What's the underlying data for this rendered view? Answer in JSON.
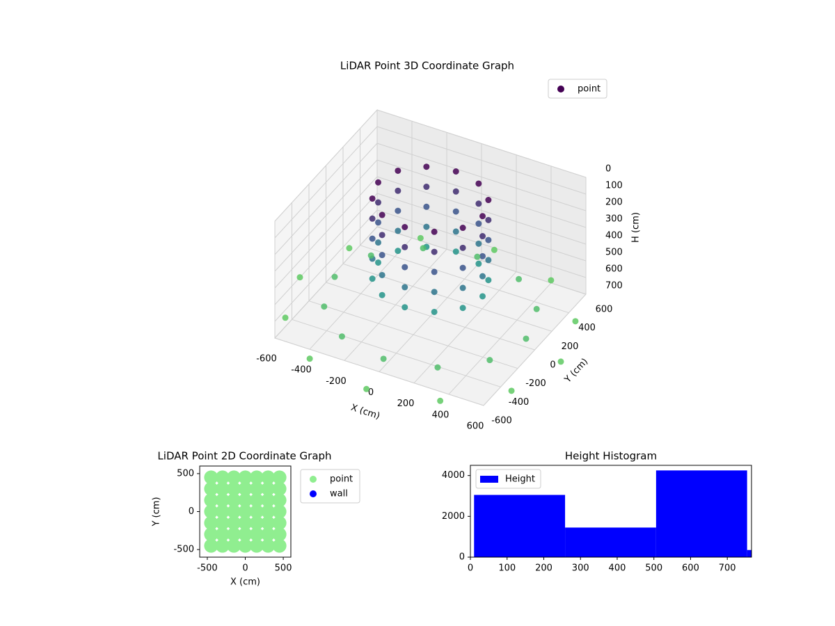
{
  "chart_data": [
    {
      "type": "scatter3d",
      "title": "LiDAR Point 3D Coordinate Graph",
      "xlabel": "X (cm)",
      "ylabel": "Y (cm)",
      "zlabel": "H (cm)",
      "xlim": [
        -600,
        600
      ],
      "ylim": [
        -600,
        600
      ],
      "zlim": [
        0,
        700
      ],
      "z_inverted": true,
      "xticks": [
        -600,
        -400,
        -200,
        0,
        200,
        400,
        600
      ],
      "yticks": [
        -600,
        -400,
        -200,
        0,
        200,
        400,
        600
      ],
      "zticks": [
        0,
        100,
        200,
        300,
        400,
        500,
        600,
        700
      ],
      "colormap": [
        "#440154",
        "#3b528b",
        "#21918c",
        "#5ec962"
      ],
      "series": [
        {
          "name": "point",
          "color": "#440154",
          "x": [
            300,
            260,
            150,
            0,
            -150,
            -260,
            -300,
            -260,
            -150,
            0,
            150,
            260,
            300,
            260,
            150,
            0,
            -150,
            -260,
            -300,
            -260,
            -150,
            0,
            150,
            260,
            300,
            260,
            150,
            0,
            -150,
            -260,
            -300,
            -260,
            -150,
            0,
            150,
            260,
            300,
            260,
            150,
            0,
            -150,
            -260,
            -300,
            -260,
            -150,
            0,
            150,
            260,
            300,
            260,
            150,
            0,
            -150,
            -260,
            -300,
            -260,
            -150,
            0,
            150,
            260,
            550,
            476,
            275,
            0,
            -275,
            -476,
            -550,
            -476,
            -275,
            0,
            275,
            476,
            750,
            650,
            375,
            0,
            -375,
            -650,
            -750,
            -650,
            -375,
            0,
            375,
            650
          ],
          "y": [
            0,
            150,
            260,
            300,
            260,
            150,
            0,
            -150,
            -260,
            -300,
            -260,
            -150,
            0,
            150,
            260,
            300,
            260,
            150,
            0,
            -150,
            -260,
            -300,
            -260,
            -150,
            0,
            150,
            260,
            300,
            260,
            150,
            0,
            -150,
            -260,
            -300,
            -260,
            -150,
            0,
            150,
            260,
            300,
            260,
            150,
            0,
            -150,
            -260,
            -300,
            -260,
            -150,
            0,
            150,
            260,
            300,
            260,
            150,
            0,
            -150,
            -260,
            -300,
            -260,
            -150,
            0,
            275,
            476,
            550,
            476,
            275,
            0,
            -275,
            -476,
            -550,
            -476,
            -275,
            0,
            375,
            650,
            750,
            650,
            375,
            0,
            -375,
            -650,
            -750,
            -650,
            -375
          ],
          "h": [
            0,
            0,
            0,
            0,
            0,
            0,
            0,
            0,
            0,
            0,
            0,
            0,
            120,
            120,
            120,
            120,
            120,
            120,
            120,
            120,
            120,
            120,
            120,
            120,
            240,
            240,
            240,
            240,
            240,
            240,
            240,
            240,
            240,
            240,
            240,
            240,
            360,
            360,
            360,
            360,
            360,
            360,
            360,
            360,
            360,
            360,
            360,
            360,
            480,
            480,
            480,
            480,
            480,
            480,
            480,
            480,
            480,
            480,
            480,
            480,
            650,
            650,
            650,
            650,
            650,
            650,
            650,
            650,
            650,
            650,
            650,
            650,
            720,
            720,
            720,
            720,
            720,
            720,
            720,
            720,
            720,
            720,
            720,
            720
          ]
        }
      ]
    },
    {
      "type": "scatter",
      "title": "LiDAR Point 2D Coordinate Graph",
      "xlabel": "X (cm)",
      "ylabel": "Y (cm)",
      "xlim": [
        -600,
        600
      ],
      "ylim": [
        -600,
        600
      ],
      "xticks": [
        -500,
        0,
        500
      ],
      "yticks": [
        -500,
        0,
        500
      ],
      "series": [
        {
          "name": "point",
          "color": "#90ee90",
          "x": [
            -450,
            -300,
            -150,
            0,
            150,
            300,
            450,
            -450,
            -300,
            -150,
            0,
            150,
            300,
            450,
            -450,
            -300,
            -150,
            0,
            150,
            300,
            450,
            -450,
            -300,
            -150,
            0,
            150,
            300,
            450,
            -450,
            -300,
            -150,
            0,
            150,
            300,
            450,
            -450,
            -300,
            -150,
            0,
            150,
            300,
            450,
            -450,
            -300,
            -150,
            0,
            150,
            300,
            450
          ],
          "y": [
            -450,
            -450,
            -450,
            -450,
            -450,
            -450,
            -450,
            -300,
            -300,
            -300,
            -300,
            -300,
            -300,
            -300,
            -150,
            -150,
            -150,
            -150,
            -150,
            -150,
            -150,
            0,
            0,
            0,
            0,
            0,
            0,
            0,
            150,
            150,
            150,
            150,
            150,
            150,
            150,
            300,
            300,
            300,
            300,
            300,
            300,
            300,
            450,
            450,
            450,
            450,
            450,
            450,
            450
          ]
        },
        {
          "name": "wall",
          "color": "#0000ff",
          "x": [],
          "y": []
        }
      ]
    },
    {
      "type": "histogram",
      "title": "Height Histogram",
      "bins": [
        10,
        258,
        506,
        754,
        766
      ],
      "counts": [
        3050,
        1450,
        4250,
        350
      ],
      "series_name": "Height",
      "color": "#0000ff",
      "xlim": [
        0,
        766
      ],
      "ylim": [
        0,
        4500
      ],
      "xticks": [
        0,
        100,
        200,
        300,
        400,
        500,
        600,
        700
      ],
      "yticks": [
        0,
        2000,
        4000
      ]
    }
  ]
}
